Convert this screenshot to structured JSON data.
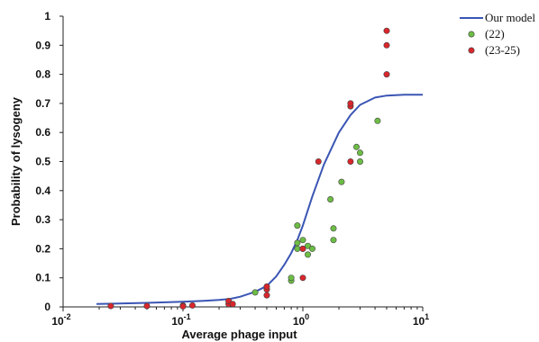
{
  "chart_data": {
    "type": "scatter",
    "title": "",
    "xlabel": "Average phage input",
    "ylabel": "Probability of lysogeny",
    "x_scale": "log",
    "xlim": [
      0.01,
      10
    ],
    "ylim": [
      0,
      1
    ],
    "grid": false,
    "legend_position": "top-right",
    "x_ticks": [
      {
        "value": 0.01,
        "base": "10",
        "exp": "-2"
      },
      {
        "value": 0.1,
        "base": "10",
        "exp": "-1"
      },
      {
        "value": 1,
        "base": "10",
        "exp": "0"
      },
      {
        "value": 10,
        "base": "10",
        "exp": "1"
      }
    ],
    "y_ticks": [
      "0",
      "0.1",
      "0.2",
      "0.3",
      "0.4",
      "0.5",
      "0.6",
      "0.7",
      "0.8",
      "0.9",
      "1"
    ],
    "series": [
      {
        "name": "Our model",
        "kind": "line",
        "color": "#3a55b4",
        "x": [
          0.019,
          0.05,
          0.1,
          0.15,
          0.2,
          0.25,
          0.3,
          0.4,
          0.5,
          0.6,
          0.7,
          0.8,
          0.9,
          1.0,
          1.2,
          1.5,
          2.0,
          2.5,
          3.0,
          4.0,
          5.0,
          7.0,
          10.0
        ],
        "y": [
          0.01,
          0.014,
          0.018,
          0.021,
          0.024,
          0.028,
          0.035,
          0.052,
          0.072,
          0.105,
          0.145,
          0.185,
          0.23,
          0.28,
          0.38,
          0.49,
          0.6,
          0.66,
          0.695,
          0.72,
          0.727,
          0.73,
          0.73
        ]
      },
      {
        "name": "(22)",
        "kind": "points",
        "color": "#6dbd45",
        "x": [
          0.4,
          0.8,
          0.8,
          0.9,
          0.9,
          0.9,
          1.0,
          1.0,
          1.1,
          1.1,
          1.2,
          1.7,
          1.8,
          1.8,
          2.1,
          2.8,
          3.0,
          3.0,
          4.2
        ],
        "y": [
          0.05,
          0.09,
          0.1,
          0.2,
          0.22,
          0.28,
          0.2,
          0.23,
          0.18,
          0.21,
          0.2,
          0.37,
          0.23,
          0.27,
          0.43,
          0.55,
          0.53,
          0.5,
          0.64
        ]
      },
      {
        "name": "(23-25)",
        "kind": "points",
        "color": "#d9262c",
        "x": [
          0.025,
          0.05,
          0.1,
          0.1,
          0.12,
          0.24,
          0.24,
          0.26,
          0.5,
          0.5,
          0.5,
          1.0,
          1.0,
          1.35,
          2.5,
          2.5,
          2.5,
          5.0,
          5.0,
          5.0
        ],
        "y": [
          0.003,
          0.003,
          0.005,
          0.002,
          0.005,
          0.01,
          0.02,
          0.01,
          0.04,
          0.06,
          0.07,
          0.2,
          0.1,
          0.5,
          0.5,
          0.69,
          0.7,
          0.8,
          0.9,
          0.95
        ]
      }
    ]
  }
}
